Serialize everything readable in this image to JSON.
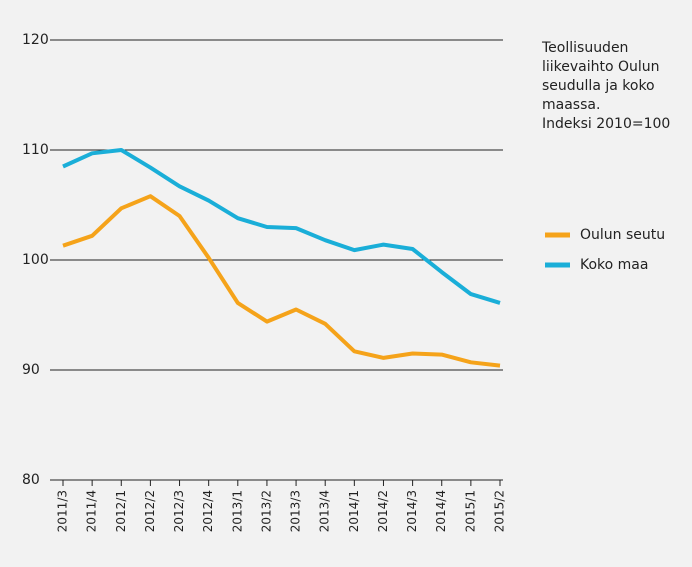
{
  "chart_data": {
    "type": "line",
    "title": [
      "Teollisuuden",
      "liikevaihto Oulun",
      "seudulla ja koko",
      "maassa.",
      "Indeksi 2010=100"
    ],
    "categories": [
      "2011/3",
      "2011/4",
      "2012/1",
      "2012/2",
      "2012/3",
      "2012/4",
      "2013/1",
      "2013/2",
      "2013/3",
      "2013/4",
      "2014/1",
      "2014/2",
      "2014/3",
      "2014/4",
      "2015/1",
      "2015/2"
    ],
    "series": [
      {
        "name": "Oulun seutu",
        "color": "#f5a31a",
        "values": [
          101.3,
          102.2,
          104.7,
          105.8,
          104.0,
          100.2,
          96.1,
          94.4,
          95.5,
          94.2,
          91.7,
          91.1,
          91.5,
          91.4,
          90.7,
          90.4
        ]
      },
      {
        "name": "Koko maa",
        "color": "#1aaed8",
        "values": [
          108.5,
          109.7,
          110.0,
          108.4,
          106.7,
          105.4,
          103.8,
          103.0,
          102.9,
          101.8,
          100.9,
          101.4,
          101.0,
          98.9,
          96.9,
          96.1
        ]
      }
    ],
    "ylim": [
      80,
      120
    ],
    "yticks": [
      80,
      90,
      100,
      110,
      120
    ],
    "grid": true,
    "legend": "right"
  }
}
